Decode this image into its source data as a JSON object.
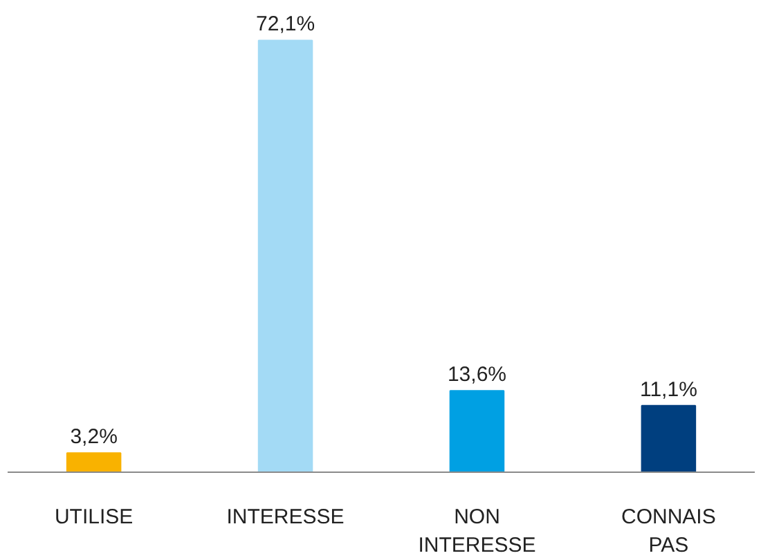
{
  "chart_data": {
    "type": "bar",
    "categories": [
      "UTILISE",
      "INTERESSE",
      "NON INTERESSE",
      "CONNAIS PAS"
    ],
    "values": [
      3.2,
      72.1,
      13.6,
      11.1
    ],
    "colors": [
      "#f9b200",
      "#a3daf5",
      "#00a0e3",
      "#003f7f"
    ],
    "value_labels": [
      "3,2%",
      "72,1%",
      "13,6%",
      "11,1%"
    ],
    "grid": false
  }
}
